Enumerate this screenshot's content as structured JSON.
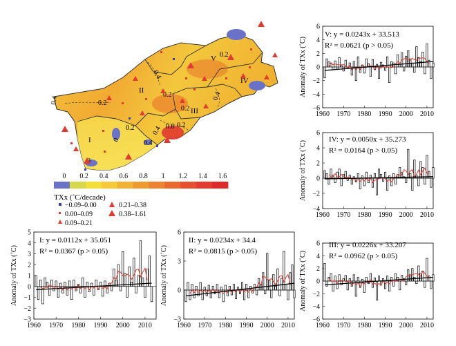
{
  "map": {
    "region_labels": [
      "I",
      "II",
      "III",
      "IV",
      "V"
    ],
    "contour_labels": [
      "0.4",
      "0.2",
      "0.4",
      "0.2",
      "0.2",
      "0.4",
      "0.2",
      "0.6",
      "0.4",
      "0.2",
      "0.4",
      "0.2",
      "0",
      "0"
    ],
    "colorbar": {
      "ticks": [
        "0",
        "0.2",
        "0.4",
        "0.6",
        "0.8",
        "1",
        "1.2",
        "1.4",
        "1.6"
      ],
      "title": "TXx (˚C/decade)",
      "colors": [
        "#6a72c8",
        "#d4d84a",
        "#f2df3a",
        "#f5c93a",
        "#f2b234",
        "#ef9a30",
        "#ec8330",
        "#e9692e",
        "#e65030",
        "#e23b30",
        "#dd2a2a"
      ]
    },
    "legend": [
      {
        "symbol": "square",
        "color": "#3a3fb0",
        "label": "−0.09–0.00"
      },
      {
        "symbol": "small-square",
        "color": "#e23b30",
        "label": "0.00–0.09"
      },
      {
        "symbol": "small-triangle",
        "color": "#e23b30",
        "label": "0.09–0.21"
      },
      {
        "symbol": "triangle",
        "color": "#e23b30",
        "label": "0.21–0.38"
      },
      {
        "symbol": "large-triangle",
        "color": "#e23b30",
        "label": "0.38–1.61"
      }
    ]
  },
  "chart_data": [
    {
      "id": "V",
      "type": "bar",
      "title": "V: y = 0.0243x + 33.513",
      "r2": "R² = 0.0621 (p > 0.05)",
      "ylabel": "Anomaly of TXx (˚C)",
      "ylim": [
        -6,
        6
      ],
      "yticks": [
        "6",
        "4",
        "2",
        "0",
        "−2",
        "−4",
        "−6"
      ],
      "xlim": [
        1960,
        2013
      ],
      "xticks": [
        "1960",
        "1970",
        "1980",
        "1990",
        "2000",
        "2010"
      ],
      "x_start": 1961,
      "values": [
        -1.6,
        1.2,
        0.8,
        0.6,
        -0.4,
        0.9,
        -0.3,
        1.4,
        0.2,
        -0.6,
        1.0,
        -0.2,
        0.6,
        -1.2,
        0.8,
        -2.0,
        1.5,
        -0.8,
        0.3,
        -0.9,
        1.2,
        0.5,
        -1.4,
        1.1,
        -0.4,
        0.4,
        -1.7,
        0.7,
        0.3,
        -0.5,
        1.5,
        -2.3,
        0.8,
        0.6,
        -1.0,
        1.8,
        0.4,
        2.1,
        -0.6,
        1.6,
        2.4,
        1.2,
        0.6,
        -0.8,
        3.0,
        1.4,
        0.8,
        2.2,
        -1.0,
        3.4,
        1.0,
        -1.7,
        0.6
      ],
      "trend": [
        -0.5,
        0.8
      ]
    },
    {
      "id": "IV",
      "type": "bar",
      "title": "IV: y = 0.0050x + 35.273",
      "r2": "R² = 0.0164 (p > 0.05)",
      "ylabel": "Anomaly of TXx (˚C)",
      "ylim": [
        -4,
        6
      ],
      "yticks": [
        "6",
        "4",
        "2",
        "0",
        "−2",
        "−4"
      ],
      "xlim": [
        1960,
        2013
      ],
      "xticks": [
        "1960",
        "1970",
        "1980",
        "1990",
        "2000",
        "2010"
      ],
      "x_start": 1961,
      "values": [
        1.0,
        0.6,
        -0.8,
        1.2,
        0.4,
        -0.6,
        0.8,
        1.2,
        -1.0,
        0.5,
        0.9,
        -0.3,
        0.4,
        -0.8,
        0.2,
        -0.5,
        0.6,
        -1.4,
        0.3,
        -1.0,
        0.8,
        -0.6,
        0.4,
        -1.2,
        0.6,
        -2.2,
        1.2,
        0.5,
        -0.4,
        0.8,
        -1.6,
        0.3,
        -1.0,
        0.6,
        -0.8,
        0.5,
        1.4,
        0.8,
        0.2,
        -0.6,
        3.8,
        0.6,
        -1.6,
        2.4,
        0.4,
        -1.0,
        2.2,
        1.4,
        -0.8,
        3.0,
        0.9,
        -1.2,
        1.4
      ],
      "trend": [
        -0.1,
        0.2
      ]
    },
    {
      "id": "III",
      "type": "bar",
      "title": "III: y = 0.0226x + 33.207",
      "r2": "R² = 0.0962 (p > 0.05)",
      "ylabel": "Anomaly of TXx (˚C)",
      "ylim": [
        -6,
        6
      ],
      "yticks": [
        "6",
        "4",
        "2",
        "0",
        "−2",
        "−4",
        "−6"
      ],
      "xlim": [
        1960,
        2013
      ],
      "xticks": [
        "1960",
        "1970",
        "1980",
        "1990",
        "2000",
        "2010"
      ],
      "x_start": 1961,
      "values": [
        2.8,
        -0.8,
        0.6,
        1.2,
        -1.6,
        0.8,
        -1.2,
        1.0,
        -0.6,
        0.4,
        0.9,
        -1.4,
        0.4,
        -0.8,
        1.0,
        -2.4,
        0.6,
        -1.0,
        0.3,
        -1.8,
        0.6,
        -0.4,
        1.2,
        -1.0,
        0.5,
        -3.0,
        0.8,
        -0.6,
        0.4,
        -1.2,
        0.8,
        -1.6,
        0.6,
        -0.8,
        1.2,
        0.6,
        -1.4,
        0.9,
        0.4,
        -0.6,
        1.8,
        1.0,
        2.0,
        0.6,
        -0.4,
        2.4,
        1.2,
        1.6,
        -1.0,
        3.6,
        0.8,
        -1.2,
        1.0
      ],
      "trend": [
        -0.6,
        0.6
      ]
    },
    {
      "id": "I",
      "type": "bar",
      "title": "I: y = 0.0112x + 35.051",
      "r2": "R² = 0.0367 (p > 0.05)",
      "ylabel": "Anomaly of TXx (˚C)",
      "ylim": [
        -3,
        5
      ],
      "yticks": [
        "5",
        "4",
        "3",
        "2",
        "1",
        "0",
        "−1",
        "−2",
        "−3"
      ],
      "xlim": [
        1960,
        2015
      ],
      "xticks": [
        "1960",
        "1970",
        "1980",
        "1990",
        "2000",
        "2010"
      ],
      "x_start": 1961,
      "values": [
        1.0,
        -1.2,
        0.6,
        -1.6,
        0.8,
        0.4,
        -0.8,
        0.6,
        -0.4,
        0.5,
        -1.0,
        0.3,
        -0.6,
        0.4,
        -0.8,
        0.5,
        -1.2,
        0.6,
        -0.4,
        0.2,
        -0.6,
        0.8,
        -1.0,
        0.4,
        -0.5,
        0.3,
        -0.8,
        0.6,
        -0.3,
        0.4,
        -0.9,
        0.5,
        -0.6,
        0.3,
        -0.4,
        1.6,
        0.6,
        2.0,
        -0.4,
        3.2,
        1.2,
        -1.0,
        1.8,
        0.4,
        2.6,
        -0.6,
        1.0,
        4.2,
        0.8,
        -1.0,
        1.6,
        2.8,
        -1.4
      ],
      "trend": [
        -0.3,
        0.3
      ]
    },
    {
      "id": "II",
      "type": "bar",
      "title": "II: y = 0.0234x + 34.4",
      "r2": "R² = 0.0815 (p > 0.05)",
      "ylabel": "Anomaly of TXx (˚C)",
      "ylim": [
        -3,
        6
      ],
      "yticks": [
        "6",
        "3",
        "0",
        "−3"
      ],
      "xlim": [
        1960,
        2013
      ],
      "xticks": [
        "1960",
        "1970",
        "1980",
        "1990",
        "2000",
        "2010"
      ],
      "x_start": 1961,
      "values": [
        -1.2,
        0.8,
        -1.0,
        0.6,
        -0.8,
        0.4,
        -0.6,
        0.8,
        -1.0,
        0.3,
        -0.6,
        0.5,
        -0.8,
        0.4,
        -0.4,
        0.6,
        -0.8,
        0.3,
        -1.2,
        0.5,
        -0.6,
        0.4,
        -0.5,
        0.6,
        -0.9,
        0.3,
        -0.4,
        0.8,
        -1.0,
        0.6,
        -0.8,
        0.4,
        -0.3,
        0.6,
        -0.5,
        1.2,
        0.6,
        1.8,
        -0.4,
        3.8,
        1.0,
        -0.8,
        1.6,
        0.4,
        2.2,
        -0.6,
        1.2,
        4.0,
        0.6,
        -1.0,
        1.8,
        2.6,
        -0.8
      ],
      "trend": [
        -0.6,
        0.7
      ]
    }
  ]
}
